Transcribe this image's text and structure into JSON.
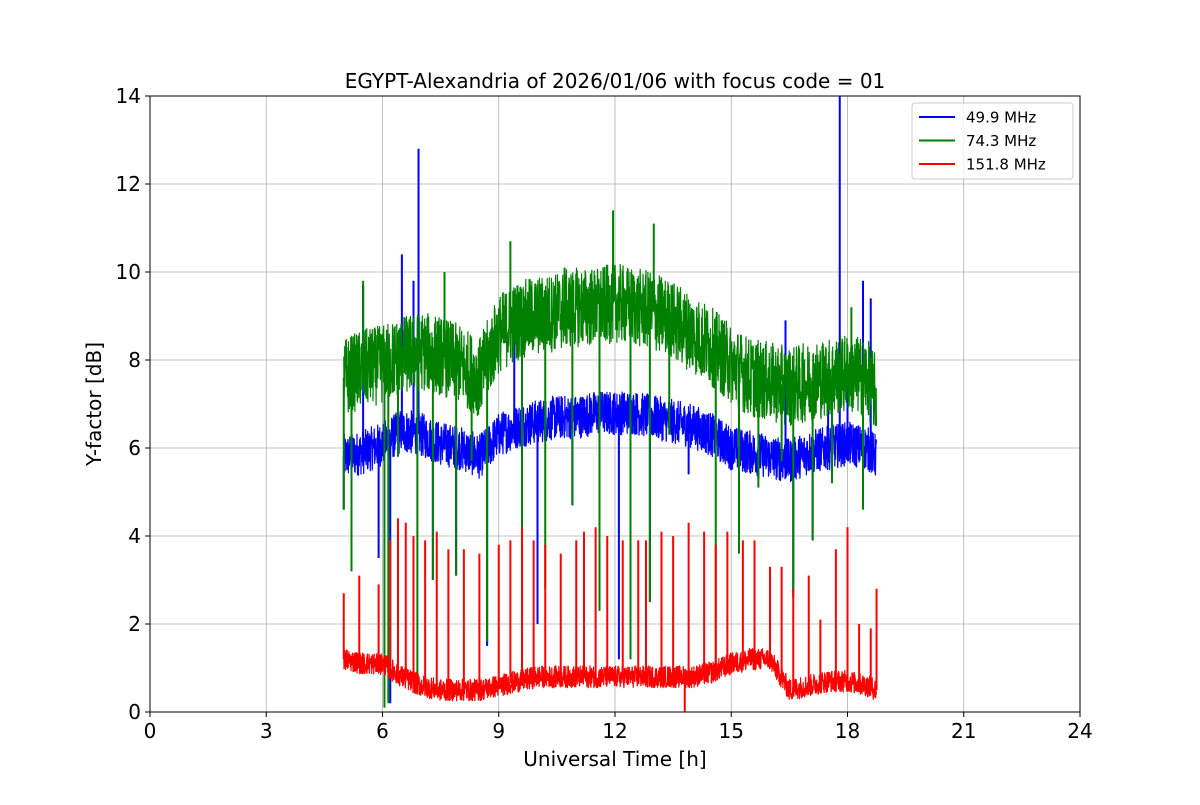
{
  "chart_data": {
    "type": "line",
    "title": "EGYPT-Alexandria of 2026/01/06 with focus code = 01",
    "xlabel": "Universal Time [h]",
    "ylabel": "Y-factor [dB]",
    "xlim": [
      0,
      24
    ],
    "ylim": [
      0,
      14
    ],
    "xticks": [
      0,
      3,
      6,
      9,
      12,
      15,
      18,
      21,
      24
    ],
    "yticks": [
      0,
      2,
      4,
      6,
      8,
      10,
      12,
      14
    ],
    "grid": true,
    "legend_position": "top-right",
    "series": [
      {
        "name": " 49.9 MHz",
        "color": "#0000ff",
        "base": [
          [
            5.0,
            5.8
          ],
          [
            5.5,
            5.9
          ],
          [
            6.0,
            6.1
          ],
          [
            6.5,
            6.4
          ],
          [
            7.0,
            6.3
          ],
          [
            7.5,
            6.1
          ],
          [
            8.0,
            6.0
          ],
          [
            8.5,
            5.8
          ],
          [
            9.0,
            6.3
          ],
          [
            9.5,
            6.5
          ],
          [
            10.0,
            6.6
          ],
          [
            10.5,
            6.7
          ],
          [
            11.0,
            6.7
          ],
          [
            11.5,
            6.8
          ],
          [
            12.0,
            6.8
          ],
          [
            12.5,
            6.8
          ],
          [
            13.0,
            6.7
          ],
          [
            13.5,
            6.6
          ],
          [
            14.0,
            6.5
          ],
          [
            14.5,
            6.3
          ],
          [
            15.0,
            6.0
          ],
          [
            15.5,
            5.9
          ],
          [
            16.0,
            5.8
          ],
          [
            16.5,
            5.7
          ],
          [
            17.0,
            5.9
          ],
          [
            17.5,
            6.0
          ],
          [
            18.0,
            6.1
          ],
          [
            18.5,
            6.0
          ],
          [
            18.75,
            5.8
          ]
        ],
        "amp": 0.5,
        "spikes": [
          [
            5.0,
            4.6
          ],
          [
            5.2,
            3.2
          ],
          [
            5.5,
            9.7
          ],
          [
            5.9,
            3.5
          ],
          [
            6.2,
            0.2
          ],
          [
            6.5,
            10.4
          ],
          [
            6.8,
            9.8
          ],
          [
            6.93,
            12.8
          ],
          [
            7.3,
            3.0
          ],
          [
            7.9,
            3.1
          ],
          [
            8.7,
            1.5
          ],
          [
            9.4,
            9.1
          ],
          [
            9.6,
            0.6
          ],
          [
            10.0,
            2.0
          ],
          [
            10.9,
            4.7
          ],
          [
            11.6,
            2.3
          ],
          [
            12.1,
            1.2
          ],
          [
            12.9,
            2.5
          ],
          [
            13.4,
            6.6
          ],
          [
            13.9,
            5.4
          ],
          [
            14.6,
            6.3
          ],
          [
            15.7,
            5.3
          ],
          [
            16.4,
            8.9
          ],
          [
            16.6,
            2.6
          ],
          [
            17.1,
            3.9
          ],
          [
            17.5,
            7.8
          ],
          [
            17.8,
            14.0
          ],
          [
            18.0,
            8.1
          ],
          [
            18.4,
            9.8
          ],
          [
            18.6,
            9.4
          ]
        ]
      },
      {
        "name": " 74.3 MHz",
        "color": "#008000",
        "base": [
          [
            5.0,
            7.6
          ],
          [
            5.5,
            7.8
          ],
          [
            6.0,
            7.9
          ],
          [
            6.5,
            8.1
          ],
          [
            7.0,
            8.2
          ],
          [
            7.5,
            8.1
          ],
          [
            8.0,
            7.9
          ],
          [
            8.5,
            7.6
          ],
          [
            9.0,
            8.6
          ],
          [
            9.5,
            8.9
          ],
          [
            10.0,
            9.0
          ],
          [
            10.5,
            9.1
          ],
          [
            11.0,
            9.2
          ],
          [
            11.5,
            9.2
          ],
          [
            12.0,
            9.3
          ],
          [
            12.5,
            9.2
          ],
          [
            13.0,
            9.1
          ],
          [
            13.5,
            8.9
          ],
          [
            14.0,
            8.6
          ],
          [
            14.5,
            8.3
          ],
          [
            15.0,
            7.9
          ],
          [
            15.5,
            7.6
          ],
          [
            16.0,
            7.5
          ],
          [
            16.5,
            7.4
          ],
          [
            17.0,
            7.5
          ],
          [
            17.5,
            7.6
          ],
          [
            18.0,
            7.7
          ],
          [
            18.5,
            7.6
          ],
          [
            18.75,
            7.2
          ]
        ],
        "amp": 0.9,
        "spikes": [
          [
            5.0,
            4.6
          ],
          [
            5.2,
            3.2
          ],
          [
            5.5,
            9.8
          ],
          [
            6.05,
            0.1
          ],
          [
            6.15,
            0.2
          ],
          [
            6.4,
            5.8
          ],
          [
            6.9,
            0.4
          ],
          [
            7.3,
            3.0
          ],
          [
            7.6,
            10.0
          ],
          [
            7.9,
            3.1
          ],
          [
            8.3,
            5.7
          ],
          [
            8.7,
            1.6
          ],
          [
            9.3,
            10.7
          ],
          [
            9.6,
            0.6
          ],
          [
            10.2,
            2.8
          ],
          [
            10.7,
            10.1
          ],
          [
            10.9,
            4.7
          ],
          [
            11.6,
            2.3
          ],
          [
            11.95,
            11.4
          ],
          [
            12.4,
            1.2
          ],
          [
            12.9,
            2.5
          ],
          [
            13.0,
            11.1
          ],
          [
            13.4,
            6.3
          ],
          [
            14.6,
            1.0
          ],
          [
            15.2,
            3.6
          ],
          [
            15.7,
            5.1
          ],
          [
            16.3,
            5.7
          ],
          [
            16.6,
            2.7
          ],
          [
            17.1,
            3.9
          ],
          [
            17.6,
            5.2
          ],
          [
            18.1,
            9.2
          ],
          [
            18.4,
            4.6
          ]
        ]
      },
      {
        "name": " 151.8 MHz",
        "color": "#ff0000",
        "base": [
          [
            5.0,
            1.2
          ],
          [
            5.5,
            1.1
          ],
          [
            6.0,
            1.1
          ],
          [
            6.5,
            0.8
          ],
          [
            7.0,
            0.6
          ],
          [
            7.5,
            0.5
          ],
          [
            8.0,
            0.5
          ],
          [
            8.5,
            0.5
          ],
          [
            9.0,
            0.6
          ],
          [
            9.5,
            0.7
          ],
          [
            10.0,
            0.8
          ],
          [
            10.5,
            0.8
          ],
          [
            11.0,
            0.8
          ],
          [
            11.5,
            0.8
          ],
          [
            12.0,
            0.8
          ],
          [
            12.5,
            0.8
          ],
          [
            13.0,
            0.8
          ],
          [
            13.5,
            0.8
          ],
          [
            14.0,
            0.8
          ],
          [
            14.5,
            0.9
          ],
          [
            15.0,
            1.1
          ],
          [
            15.5,
            1.2
          ],
          [
            16.0,
            1.2
          ],
          [
            16.5,
            0.5
          ],
          [
            17.0,
            0.6
          ],
          [
            17.5,
            0.7
          ],
          [
            18.0,
            0.7
          ],
          [
            18.5,
            0.6
          ],
          [
            18.75,
            0.5
          ]
        ],
        "amp": 0.25,
        "spikes": [
          [
            5.0,
            2.7
          ],
          [
            5.4,
            3.1
          ],
          [
            5.9,
            2.9
          ],
          [
            6.2,
            3.9
          ],
          [
            6.4,
            4.4
          ],
          [
            6.6,
            4.3
          ],
          [
            6.8,
            4.0
          ],
          [
            7.1,
            3.9
          ],
          [
            7.4,
            4.1
          ],
          [
            7.7,
            3.7
          ],
          [
            8.1,
            3.7
          ],
          [
            8.5,
            3.6
          ],
          [
            9.0,
            3.8
          ],
          [
            9.3,
            3.9
          ],
          [
            9.6,
            4.2
          ],
          [
            9.9,
            3.9
          ],
          [
            10.2,
            3.8
          ],
          [
            10.6,
            3.6
          ],
          [
            11.0,
            3.9
          ],
          [
            11.2,
            4.1
          ],
          [
            11.5,
            4.2
          ],
          [
            11.8,
            4.0
          ],
          [
            12.2,
            3.9
          ],
          [
            12.6,
            3.9
          ],
          [
            12.8,
            3.9
          ],
          [
            13.2,
            4.1
          ],
          [
            13.5,
            4.0
          ],
          [
            13.8,
            0.0
          ],
          [
            13.9,
            4.3
          ],
          [
            14.3,
            4.1
          ],
          [
            14.6,
            3.8
          ],
          [
            14.9,
            4.1
          ],
          [
            15.3,
            3.9
          ],
          [
            15.6,
            3.9
          ],
          [
            16.0,
            3.3
          ],
          [
            16.3,
            3.3
          ],
          [
            16.6,
            2.8
          ],
          [
            17.0,
            3.1
          ],
          [
            17.3,
            2.1
          ],
          [
            17.7,
            3.7
          ],
          [
            18.0,
            4.2
          ],
          [
            18.3,
            2.0
          ],
          [
            18.6,
            1.9
          ],
          [
            18.75,
            2.8
          ]
        ]
      }
    ]
  }
}
